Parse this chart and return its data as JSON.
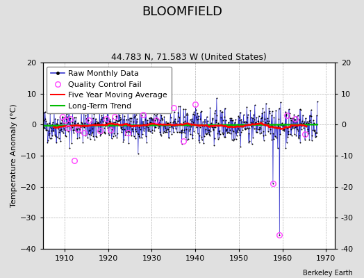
{
  "title": "BLOOMFIELD",
  "subtitle": "44.783 N, 71.583 W (United States)",
  "ylabel": "Temperature Anomaly (°C)",
  "xlabel_bottom": "Berkeley Earth",
  "ylim": [
    -40,
    20
  ],
  "yticks": [
    -40,
    -30,
    -20,
    -10,
    0,
    10,
    20
  ],
  "xlim": [
    1905,
    1972
  ],
  "xticks": [
    1910,
    1920,
    1930,
    1940,
    1950,
    1960,
    1970
  ],
  "background_color": "#e0e0e0",
  "plot_bg_color": "#ffffff",
  "grid_color": "#b0b0b0",
  "raw_line_color": "#3333cc",
  "raw_dot_color": "#000000",
  "qc_fail_color": "#ff44ff",
  "moving_avg_color": "#ff0000",
  "trend_color": "#00bb00",
  "seed": 42,
  "n_months": 756,
  "start_year": 1905.0,
  "end_year": 1968.0,
  "trend_slope": 0.006,
  "trend_intercept": -0.15,
  "title_fontsize": 13,
  "subtitle_fontsize": 9,
  "ylabel_fontsize": 8,
  "tick_fontsize": 8,
  "legend_fontsize": 8,
  "qc_fail_points": [
    [
      1909.5,
      2.5
    ],
    [
      1910.2,
      1.5
    ],
    [
      1910.8,
      -1.0
    ],
    [
      1911.3,
      1.8
    ],
    [
      1912.2,
      -11.5
    ],
    [
      1913.0,
      -1.5
    ],
    [
      1914.5,
      -2.5
    ],
    [
      1915.5,
      1.5
    ],
    [
      1918.2,
      -2.0
    ],
    [
      1919.5,
      2.0
    ],
    [
      1920.5,
      -1.8
    ],
    [
      1921.5,
      2.5
    ],
    [
      1924.5,
      -2.5
    ],
    [
      1928.0,
      3.2
    ],
    [
      1931.0,
      1.5
    ],
    [
      1935.0,
      5.5
    ],
    [
      1937.2,
      -5.2
    ],
    [
      1940.0,
      6.5
    ],
    [
      1957.8,
      -19.0
    ],
    [
      1959.3,
      -35.5
    ],
    [
      1961.0,
      3.0
    ],
    [
      1963.0,
      2.0
    ],
    [
      1965.2,
      -3.0
    ]
  ]
}
